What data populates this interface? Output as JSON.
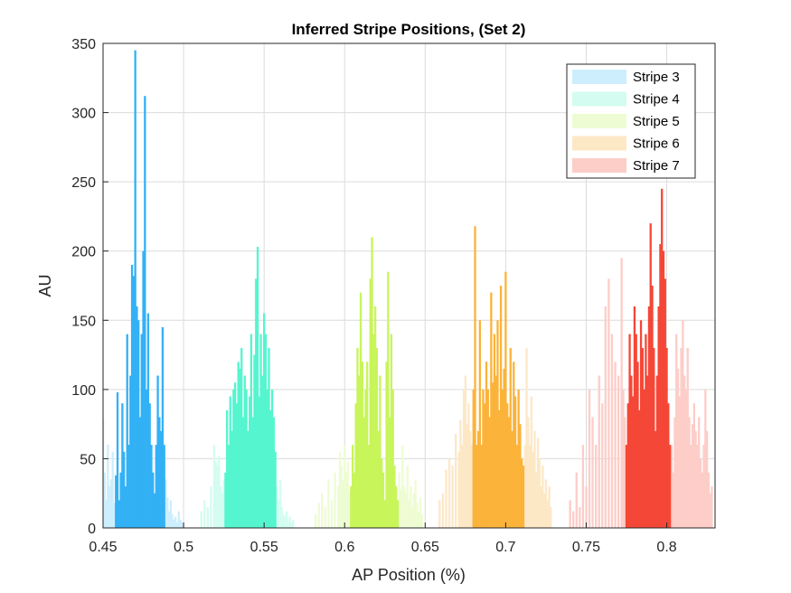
{
  "chart_data": {
    "type": "bar",
    "title": "Inferred Stripe Positions,  (Set 2)",
    "xlabel": "AP Position (%)",
    "ylabel": "AU",
    "xlim": [
      0.45,
      0.83
    ],
    "ylim": [
      0,
      350
    ],
    "xticks": [
      "0.45",
      "0.5",
      "0.55",
      "0.6",
      "0.65",
      "0.7",
      "0.75",
      "0.8"
    ],
    "yticks": [
      "0",
      "50",
      "100",
      "150",
      "200",
      "250",
      "300",
      "350"
    ],
    "grid": true,
    "legend_position": "top-right",
    "series": [
      {
        "name": "Stripe 3",
        "color": "#33b1f5",
        "light_color": "#cdeefc",
        "core": [
          [
            0.458,
            38
          ],
          [
            0.459,
            98
          ],
          [
            0.46,
            20
          ],
          [
            0.461,
            40
          ],
          [
            0.462,
            90
          ],
          [
            0.463,
            55
          ],
          [
            0.464,
            30
          ],
          [
            0.465,
            140
          ],
          [
            0.466,
            60
          ],
          [
            0.467,
            110
          ],
          [
            0.468,
            190
          ],
          [
            0.469,
            182
          ],
          [
            0.47,
            345
          ],
          [
            0.471,
            160
          ],
          [
            0.472,
            150
          ],
          [
            0.473,
            80
          ],
          [
            0.474,
            140
          ],
          [
            0.475,
            200
          ],
          [
            0.476,
            312
          ],
          [
            0.477,
            100
          ],
          [
            0.478,
            155
          ],
          [
            0.479,
            90
          ],
          [
            0.48,
            60
          ],
          [
            0.481,
            40
          ],
          [
            0.482,
            25
          ],
          [
            0.483,
            60
          ],
          [
            0.484,
            110
          ],
          [
            0.485,
            80
          ],
          [
            0.486,
            70
          ],
          [
            0.487,
            145
          ],
          [
            0.488,
            60
          ]
        ],
        "tails": [
          [
            0.45,
            78
          ],
          [
            0.451,
            40
          ],
          [
            0.452,
            20
          ],
          [
            0.453,
            60
          ],
          [
            0.454,
            30
          ],
          [
            0.455,
            35
          ],
          [
            0.456,
            55
          ],
          [
            0.457,
            18
          ],
          [
            0.489,
            35
          ],
          [
            0.49,
            22
          ],
          [
            0.491,
            12
          ],
          [
            0.492,
            20
          ],
          [
            0.493,
            10
          ],
          [
            0.494,
            6
          ],
          [
            0.495,
            8
          ],
          [
            0.496,
            4
          ],
          [
            0.497,
            12
          ],
          [
            0.498,
            6
          ],
          [
            0.499,
            4
          ]
        ]
      },
      {
        "name": "Stripe 4",
        "color": "#55f5cf",
        "light_color": "#d4fcf1",
        "core": [
          [
            0.526,
            40
          ],
          [
            0.527,
            85
          ],
          [
            0.528,
            60
          ],
          [
            0.529,
            95
          ],
          [
            0.53,
            70
          ],
          [
            0.531,
            100
          ],
          [
            0.532,
            105
          ],
          [
            0.533,
            90
          ],
          [
            0.534,
            120
          ],
          [
            0.535,
            115
          ],
          [
            0.536,
            130
          ],
          [
            0.537,
            80
          ],
          [
            0.538,
            110
          ],
          [
            0.539,
            100
          ],
          [
            0.54,
            70
          ],
          [
            0.541,
            95
          ],
          [
            0.542,
            140
          ],
          [
            0.543,
            80
          ],
          [
            0.544,
            125
          ],
          [
            0.545,
            180
          ],
          [
            0.546,
            203
          ],
          [
            0.547,
            95
          ],
          [
            0.548,
            140
          ],
          [
            0.549,
            110
          ],
          [
            0.55,
            155
          ],
          [
            0.551,
            140
          ],
          [
            0.552,
            100
          ],
          [
            0.553,
            130
          ],
          [
            0.554,
            85
          ],
          [
            0.555,
            100
          ],
          [
            0.556,
            80
          ],
          [
            0.557,
            55
          ]
        ],
        "tails": [
          [
            0.511,
            12
          ],
          [
            0.513,
            20
          ],
          [
            0.515,
            15
          ],
          [
            0.517,
            30
          ],
          [
            0.519,
            60
          ],
          [
            0.52,
            48
          ],
          [
            0.521,
            45
          ],
          [
            0.522,
            52
          ],
          [
            0.523,
            30
          ],
          [
            0.524,
            25
          ],
          [
            0.525,
            35
          ],
          [
            0.558,
            30
          ],
          [
            0.559,
            20
          ],
          [
            0.56,
            35
          ],
          [
            0.561,
            15
          ],
          [
            0.562,
            10
          ],
          [
            0.563,
            8
          ],
          [
            0.564,
            12
          ],
          [
            0.565,
            5
          ],
          [
            0.566,
            8
          ],
          [
            0.567,
            4
          ],
          [
            0.568,
            6
          ]
        ]
      },
      {
        "name": "Stripe 5",
        "color": "#c8f55a",
        "light_color": "#eefcd3",
        "core": [
          [
            0.604,
            30
          ],
          [
            0.605,
            60
          ],
          [
            0.606,
            40
          ],
          [
            0.607,
            90
          ],
          [
            0.608,
            130
          ],
          [
            0.609,
            110
          ],
          [
            0.61,
            170
          ],
          [
            0.611,
            120
          ],
          [
            0.612,
            80
          ],
          [
            0.613,
            100
          ],
          [
            0.614,
            120
          ],
          [
            0.615,
            60
          ],
          [
            0.616,
            180
          ],
          [
            0.617,
            210
          ],
          [
            0.618,
            140
          ],
          [
            0.619,
            160
          ],
          [
            0.62,
            130
          ],
          [
            0.621,
            70
          ],
          [
            0.622,
            110
          ],
          [
            0.623,
            50
          ],
          [
            0.624,
            40
          ],
          [
            0.625,
            20
          ],
          [
            0.626,
            120
          ],
          [
            0.627,
            185
          ],
          [
            0.628,
            80
          ],
          [
            0.629,
            140
          ],
          [
            0.63,
            100
          ],
          [
            0.631,
            45
          ],
          [
            0.632,
            30
          ],
          [
            0.633,
            20
          ]
        ],
        "tails": [
          [
            0.582,
            10
          ],
          [
            0.584,
            18
          ],
          [
            0.586,
            25
          ],
          [
            0.588,
            15
          ],
          [
            0.59,
            35
          ],
          [
            0.592,
            20
          ],
          [
            0.594,
            40
          ],
          [
            0.596,
            30
          ],
          [
            0.597,
            55
          ],
          [
            0.598,
            45
          ],
          [
            0.599,
            35
          ],
          [
            0.6,
            60
          ],
          [
            0.601,
            40
          ],
          [
            0.602,
            48
          ],
          [
            0.603,
            25
          ],
          [
            0.634,
            40
          ],
          [
            0.635,
            28
          ],
          [
            0.636,
            60
          ],
          [
            0.637,
            30
          ],
          [
            0.638,
            25
          ],
          [
            0.639,
            45
          ],
          [
            0.64,
            20
          ],
          [
            0.641,
            30
          ],
          [
            0.642,
            15
          ],
          [
            0.643,
            25
          ],
          [
            0.644,
            35
          ],
          [
            0.645,
            18
          ],
          [
            0.646,
            12
          ],
          [
            0.647,
            22
          ],
          [
            0.648,
            10
          ]
        ]
      },
      {
        "name": "Stripe 6",
        "color": "#fbb33a",
        "light_color": "#fde8c6",
        "core": [
          [
            0.68,
            100
          ],
          [
            0.681,
            218
          ],
          [
            0.682,
            60
          ],
          [
            0.683,
            70
          ],
          [
            0.684,
            150
          ],
          [
            0.685,
            60
          ],
          [
            0.686,
            100
          ],
          [
            0.687,
            90
          ],
          [
            0.688,
            120
          ],
          [
            0.689,
            100
          ],
          [
            0.69,
            80
          ],
          [
            0.691,
            170
          ],
          [
            0.692,
            105
          ],
          [
            0.693,
            140
          ],
          [
            0.694,
            110
          ],
          [
            0.695,
            150
          ],
          [
            0.696,
            85
          ],
          [
            0.697,
            175
          ],
          [
            0.698,
            100
          ],
          [
            0.699,
            115
          ],
          [
            0.7,
            185
          ],
          [
            0.701,
            90
          ],
          [
            0.702,
            80
          ],
          [
            0.703,
            130
          ],
          [
            0.704,
            70
          ],
          [
            0.705,
            120
          ],
          [
            0.706,
            95
          ],
          [
            0.707,
            60
          ],
          [
            0.708,
            100
          ],
          [
            0.709,
            75
          ],
          [
            0.71,
            50
          ],
          [
            0.711,
            45
          ]
        ],
        "tails": [
          [
            0.659,
            20
          ],
          [
            0.661,
            25
          ],
          [
            0.663,
            42
          ],
          [
            0.665,
            50
          ],
          [
            0.667,
            45
          ],
          [
            0.669,
            68
          ],
          [
            0.671,
            55
          ],
          [
            0.672,
            78
          ],
          [
            0.673,
            60
          ],
          [
            0.674,
            100
          ],
          [
            0.675,
            110
          ],
          [
            0.676,
            75
          ],
          [
            0.677,
            90
          ],
          [
            0.678,
            70
          ],
          [
            0.679,
            60
          ],
          [
            0.712,
            60
          ],
          [
            0.713,
            130
          ],
          [
            0.714,
            80
          ],
          [
            0.715,
            60
          ],
          [
            0.716,
            95
          ],
          [
            0.717,
            55
          ],
          [
            0.718,
            70
          ],
          [
            0.719,
            40
          ],
          [
            0.72,
            65
          ],
          [
            0.721,
            50
          ],
          [
            0.722,
            30
          ],
          [
            0.723,
            45
          ],
          [
            0.724,
            25
          ],
          [
            0.725,
            35
          ],
          [
            0.726,
            20
          ],
          [
            0.727,
            30
          ],
          [
            0.728,
            15
          ]
        ]
      },
      {
        "name": "Stripe 7",
        "color": "#f54737",
        "light_color": "#fdcdc8",
        "core": [
          [
            0.775,
            60
          ],
          [
            0.776,
            90
          ],
          [
            0.777,
            140
          ],
          [
            0.778,
            110
          ],
          [
            0.779,
            95
          ],
          [
            0.78,
            160
          ],
          [
            0.781,
            140
          ],
          [
            0.782,
            120
          ],
          [
            0.783,
            85
          ],
          [
            0.784,
            150
          ],
          [
            0.785,
            130
          ],
          [
            0.786,
            100
          ],
          [
            0.787,
            140
          ],
          [
            0.788,
            110
          ],
          [
            0.789,
            160
          ],
          [
            0.79,
            220
          ],
          [
            0.791,
            175
          ],
          [
            0.792,
            130
          ],
          [
            0.793,
            70
          ],
          [
            0.794,
            110
          ],
          [
            0.795,
            160
          ],
          [
            0.796,
            205
          ],
          [
            0.797,
            245
          ],
          [
            0.798,
            200
          ],
          [
            0.799,
            180
          ],
          [
            0.8,
            130
          ],
          [
            0.801,
            90
          ],
          [
            0.802,
            60
          ]
        ],
        "tails": [
          [
            0.74,
            20
          ],
          [
            0.742,
            12
          ],
          [
            0.744,
            40
          ],
          [
            0.746,
            15
          ],
          [
            0.748,
            60
          ],
          [
            0.75,
            30
          ],
          [
            0.752,
            100
          ],
          [
            0.754,
            80
          ],
          [
            0.756,
            60
          ],
          [
            0.758,
            110
          ],
          [
            0.76,
            90
          ],
          [
            0.762,
            160
          ],
          [
            0.764,
            180
          ],
          [
            0.766,
            140
          ],
          [
            0.768,
            120
          ],
          [
            0.77,
            110
          ],
          [
            0.772,
            195
          ],
          [
            0.773,
            100
          ],
          [
            0.774,
            80
          ],
          [
            0.803,
            60
          ],
          [
            0.804,
            40
          ],
          [
            0.805,
            80
          ],
          [
            0.806,
            140
          ],
          [
            0.807,
            115
          ],
          [
            0.808,
            95
          ],
          [
            0.809,
            130
          ],
          [
            0.81,
            150
          ],
          [
            0.811,
            110
          ],
          [
            0.812,
            100
          ],
          [
            0.813,
            130
          ],
          [
            0.814,
            80
          ],
          [
            0.815,
            60
          ],
          [
            0.816,
            75
          ],
          [
            0.817,
            90
          ],
          [
            0.818,
            70
          ],
          [
            0.819,
            60
          ],
          [
            0.82,
            80
          ],
          [
            0.821,
            50
          ],
          [
            0.822,
            40
          ],
          [
            0.823,
            60
          ],
          [
            0.824,
            100
          ],
          [
            0.825,
            70
          ],
          [
            0.826,
            40
          ],
          [
            0.827,
            25
          ],
          [
            0.828,
            30
          ]
        ]
      }
    ]
  }
}
